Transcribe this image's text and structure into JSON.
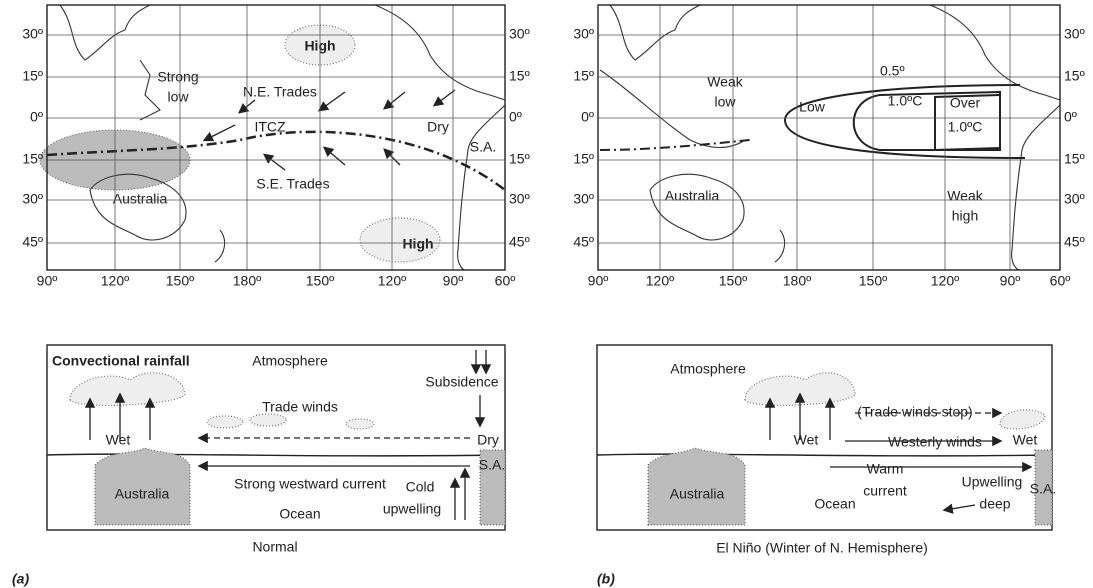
{
  "panels": [
    {
      "label": "(a)",
      "caption": "Normal",
      "map": {
        "lat_left": [
          "30º",
          "15º",
          "0º",
          "15º",
          "30º",
          "45º"
        ],
        "lat_right": [
          "30º",
          "15º",
          "0º",
          "15º",
          "30º",
          "45º"
        ],
        "lon": [
          "90º",
          "120º",
          "150º",
          "180º",
          "150º",
          "120º",
          "90º",
          "60º"
        ],
        "labels": {
          "high_north": "High",
          "strong_low": [
            "Strong",
            "low"
          ],
          "ne_trades": "N.E. Trades",
          "itcz": "ITCZ",
          "dry": "Dry",
          "sa": "S.A.",
          "se_trades": "S.E. Trades",
          "australia": "Australia",
          "high_south": "High"
        }
      },
      "section": {
        "convectional_rainfall": "Convectional rainfall",
        "atmosphere": "Atmosphere",
        "subsidence": "Subsidence",
        "trade_winds": "Trade winds",
        "wet": "Wet",
        "dry": "Dry",
        "australia": "Australia",
        "current": "Strong westward current",
        "cold_upwelling": [
          "Cold",
          "upwelling"
        ],
        "sa": "S.A.",
        "ocean": "Ocean"
      }
    },
    {
      "label": "(b)",
      "caption": "El Niño (Winter of N. Hemisphere)",
      "map": {
        "lat_left": [
          "30º",
          "15º",
          "0º",
          "15º",
          "30º",
          "45º"
        ],
        "lat_right": [
          "30º",
          "15º",
          "0º",
          "15º",
          "30º",
          "45º"
        ],
        "lon": [
          "90º",
          "120º",
          "150º",
          "180º",
          "150º",
          "120º",
          "90º",
          "60º"
        ],
        "labels": {
          "contour_05": "0.5º",
          "weak_low": [
            "Weak",
            "low"
          ],
          "low": "Low",
          "contour_10": "1.0ºC",
          "over": [
            "Over",
            "1.0ºC"
          ],
          "australia": "Australia",
          "weak_high": [
            "Weak",
            "high"
          ]
        }
      },
      "section": {
        "atmosphere": "Atmosphere",
        "trade_winds_stop": "(Trade winds stop)",
        "wet_west": "Wet",
        "westerly_winds": "Westerly winds",
        "wet_east": "Wet",
        "warm_current": [
          "Warm",
          "current"
        ],
        "upwelling_deep": [
          "Upwelling",
          "deep"
        ],
        "australia": "Australia",
        "ocean": "Ocean",
        "sa": "S.A."
      }
    }
  ]
}
